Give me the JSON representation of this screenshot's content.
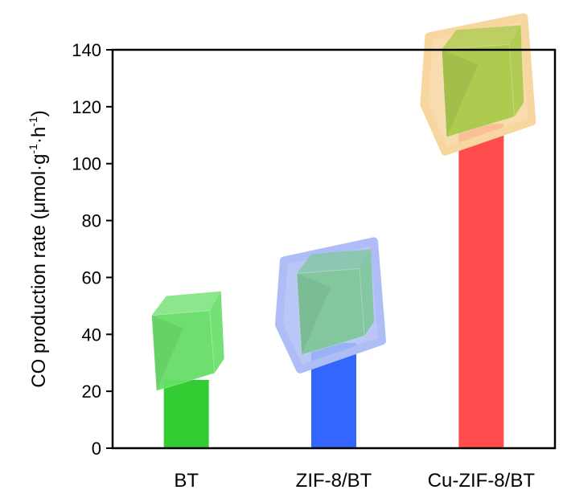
{
  "chart_data": {
    "type": "bar",
    "categories": [
      "BT",
      "ZIF-8/BT",
      "Cu-ZIF-8/BT"
    ],
    "values": [
      24,
      37,
      114
    ],
    "colors": [
      "#33cc33",
      "#3366ff",
      "#ff4d4d"
    ],
    "title": "",
    "xlabel": "",
    "ylabel": {
      "main": "CO production rate (μmol·g",
      "sup1": "-1",
      "mid": "·h",
      "sup2": "-1",
      "end": ")"
    },
    "ylim": [
      0,
      140
    ],
    "yticks": [
      "0",
      "20",
      "40",
      "60",
      "80",
      "100",
      "120",
      "140"
    ],
    "grid": false,
    "legend": "none",
    "decorations": [
      {
        "name": "green-cube-illustration",
        "fill": "#66dd66",
        "halo": "none"
      },
      {
        "name": "shelled-cube-illustration",
        "fill": "#7fc79a",
        "halo": "#aebdf5"
      },
      {
        "name": "cu-shelled-cube-illustration",
        "fill": "#a8c94a",
        "halo": "#f8d6a0"
      }
    ]
  }
}
